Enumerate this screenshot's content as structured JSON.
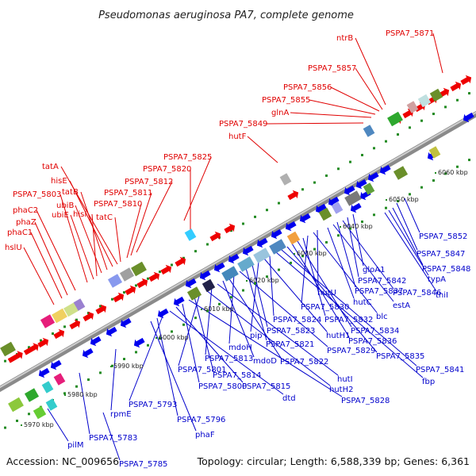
{
  "title": "Pseudomonas aeruginosa PA7, complete genome",
  "accession": "Accession: NC_009656",
  "summary": "Topology: circular; Length: 6,588,339 bp; Genes: 6,361",
  "colors": {
    "top_strand_label": "#e00000",
    "bottom_strand_label": "#0000cc",
    "forward_gene": "#ee0000",
    "reverse_gene": "#0000ee",
    "tick_forward": "#228b22",
    "backbone": "#999999"
  },
  "ruler": [
    "5970 kbp",
    "5980 kbp",
    "5990 kbp",
    "6000 kbp",
    "6010 kbp",
    "6020 kbp",
    "6030 kbp",
    "6040 kbp",
    "6050 kbp",
    "6060 kbp"
  ],
  "top_labels": [
    "PSPA7_5871",
    "ntrB",
    "PSPA7_5857",
    "PSPA7_5856",
    "PSPA7_5855",
    "glnA",
    "PSPA7_5849",
    "hutF",
    "PSPA7_5825",
    "PSPA7_5820",
    "PSPA7_5812",
    "PSPA7_5811",
    "PSPA7_5810",
    "tatC",
    "tatA",
    "hisE",
    "tatB",
    "ubiB",
    "hisI",
    "ubiE",
    "PSPA7_5803",
    "phaC2",
    "phaZ",
    "phaC1",
    "hslU"
  ],
  "bottom_labels": [
    "PSPA7_5852",
    "PSPA7_5847",
    "PSPA7_5848",
    "typA",
    "thiI",
    "gloA1",
    "PSPA7_5842",
    "PSPA7_5846",
    "PSPA7_5837",
    "estA",
    "hutC",
    "hutU",
    "blc",
    "PSPA7_5830",
    "PSPA7_5832",
    "PSPA7_5834",
    "PSPA7_5836",
    "PSPA7_5835",
    "PSPA7_5841",
    "fbp",
    "PSPA7_5824",
    "hutH1",
    "pip",
    "PSPA7_5823",
    "PSPA7_5821",
    "PSPA7_5829",
    "mdoH",
    "PSPA7_5822",
    "mdoD",
    "hutI",
    "PSPA7_5813",
    "hutH2",
    "PSPA7_5801",
    "PSPA7_5814",
    "PSPA7_5828",
    "PSPA7_5800",
    "PSPA7_5815",
    "dtd",
    "PSPA7_5793",
    "PSPA7_5796",
    "phaF",
    "rpmE",
    "PSPA7_5783",
    "pilM",
    "PSPA7_5785"
  ]
}
